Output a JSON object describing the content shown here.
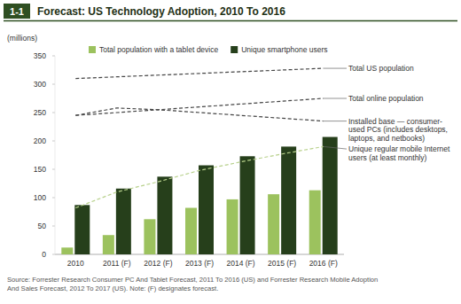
{
  "chart_data": {
    "type": "bar",
    "badge": "1-1",
    "title": "Forecast: US Technology Adoption, 2010 To 2016",
    "y_label": "(millions)",
    "categories": [
      "2010",
      "2011 (F)",
      "2012 (F)",
      "2013 (F)",
      "2014 (F)",
      "2015 (F)",
      "2016 (F)"
    ],
    "ylim": [
      0,
      350
    ],
    "yticks": [
      0,
      50,
      100,
      150,
      200,
      250,
      300,
      350
    ],
    "grid": false,
    "legend": "top",
    "series": [
      {
        "name": "Total population with a tablet device",
        "type": "bar",
        "color": "#9cc25e",
        "values": [
          12,
          34,
          62,
          82,
          97,
          106,
          113
        ]
      },
      {
        "name": "Unique smartphone users",
        "type": "bar",
        "color": "#263f1b",
        "values": [
          87,
          116,
          137,
          157,
          173,
          190,
          207
        ]
      },
      {
        "name": "Total US population",
        "type": "line",
        "line_style": "dashed",
        "color": "#444444",
        "values": [
          310,
          313,
          316,
          319,
          322,
          325,
          328
        ]
      },
      {
        "name": "Total online population",
        "type": "line",
        "line_style": "dashed",
        "color": "#444444",
        "values": [
          245,
          250,
          255,
          260,
          265,
          270,
          275
        ]
      },
      {
        "name": "Installed base — consumer-used PCs (includes desktops, laptops, and netbooks)",
        "type": "line",
        "line_style": "dashed",
        "color": "#444444",
        "values": [
          245,
          258,
          255,
          250,
          245,
          240,
          235
        ]
      },
      {
        "name": "Unique regular mobile Internet users (at least monthly)",
        "type": "line",
        "line_style": "dashed",
        "color": "#b8d18c",
        "values": [
          82,
          110,
          128,
          148,
          163,
          177,
          190
        ]
      }
    ],
    "source": [
      "Source: Forrester Research Consumer PC And Tablet Forecast, 2011 To 2016 (US) and Forrester Research Mobile Adoption",
      "And Sales Forecast, 2012 To 2017 (US). Note: (F) designates forecast."
    ]
  }
}
